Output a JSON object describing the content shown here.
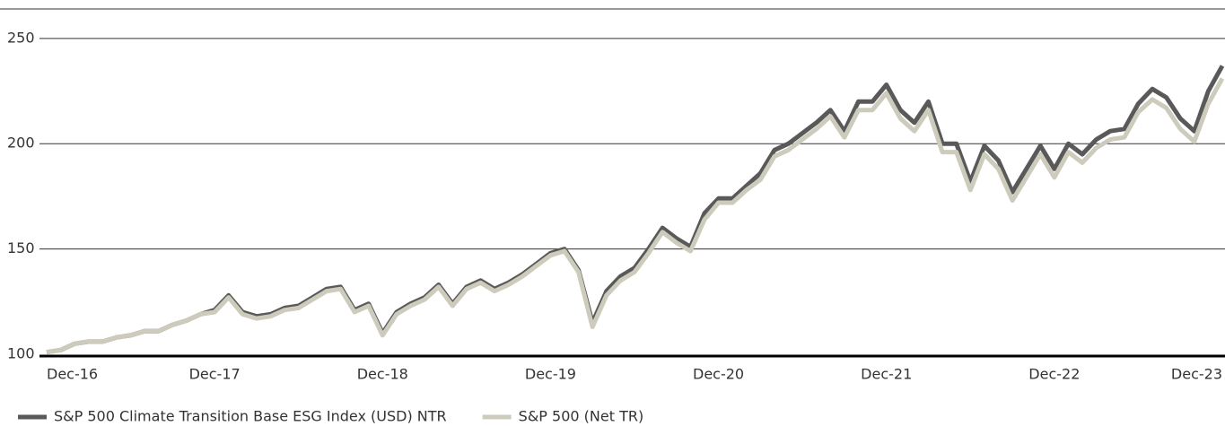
{
  "chart_data": {
    "type": "line",
    "x": [
      0,
      1,
      2,
      3,
      4,
      5,
      6,
      7,
      8,
      9,
      10,
      11,
      12,
      13,
      14,
      15,
      16,
      17,
      18,
      19,
      20,
      21,
      22,
      23,
      24,
      25,
      26,
      27,
      28,
      29,
      30,
      31,
      32,
      33,
      34,
      35,
      36,
      37,
      38,
      39,
      40,
      41,
      42,
      43,
      44,
      45,
      46,
      47,
      48,
      49,
      50,
      51,
      52,
      53,
      54,
      55,
      56,
      57,
      58,
      59,
      60,
      61,
      62,
      63,
      64,
      65,
      66,
      67,
      68,
      69,
      70,
      71,
      72,
      73,
      74,
      75,
      76,
      77,
      78,
      79,
      80,
      81,
      82,
      83,
      84
    ],
    "xlim": [
      0,
      84
    ],
    "xticks": [
      {
        "value": 0,
        "label": "Dec-16"
      },
      {
        "value": 12,
        "label": "Dec-17"
      },
      {
        "value": 24,
        "label": "Dec-18"
      },
      {
        "value": 36,
        "label": "Dec-19"
      },
      {
        "value": 48,
        "label": "Dec-20"
      },
      {
        "value": 60,
        "label": "Dec-21"
      },
      {
        "value": 72,
        "label": "Dec-22"
      },
      {
        "value": 84,
        "label": "Dec-23"
      }
    ],
    "ylim": [
      100,
      264
    ],
    "yticks": [
      100,
      150,
      200,
      250
    ],
    "grid": true,
    "series": [
      {
        "name": "S&P 500 Climate Transition Base ESG Index (USD) NTR",
        "color": "#595959",
        "values": [
          101,
          102,
          105,
          106,
          106,
          108,
          109,
          111,
          111,
          114,
          116,
          119,
          121,
          128,
          120,
          118,
          119,
          122,
          123,
          127,
          131,
          132,
          121,
          124,
          110,
          120,
          124,
          127,
          133,
          124,
          132,
          135,
          131,
          134,
          138,
          143,
          148,
          150,
          140,
          115,
          130,
          137,
          141,
          150,
          160,
          155,
          151,
          167,
          174,
          174,
          180,
          186,
          197,
          200,
          205,
          210,
          216,
          206,
          220,
          220,
          228,
          216,
          210,
          220,
          200,
          200,
          182,
          199,
          192,
          177,
          188,
          199,
          188,
          200,
          195,
          202,
          206,
          207,
          219,
          226,
          222,
          212,
          206,
          225,
          237
        ]
      },
      {
        "name": "S&P 500 (Net TR)",
        "color": "#cdcbbb",
        "values": [
          101,
          102,
          105,
          106,
          106,
          108,
          109,
          111,
          111,
          114,
          116,
          119,
          120,
          127,
          119,
          117,
          118,
          121,
          122,
          126,
          130,
          131,
          120,
          123,
          109,
          119,
          123,
          126,
          132,
          123,
          131,
          134,
          130,
          133,
          137,
          142,
          147,
          149,
          139,
          113,
          128,
          135,
          139,
          148,
          158,
          153,
          149,
          164,
          172,
          172,
          178,
          183,
          194,
          197,
          202,
          207,
          213,
          203,
          216,
          216,
          224,
          212,
          206,
          216,
          196,
          196,
          178,
          195,
          188,
          173,
          184,
          195,
          184,
          196,
          191,
          198,
          202,
          203,
          215,
          221,
          217,
          207,
          201,
          219,
          231
        ]
      }
    ]
  }
}
